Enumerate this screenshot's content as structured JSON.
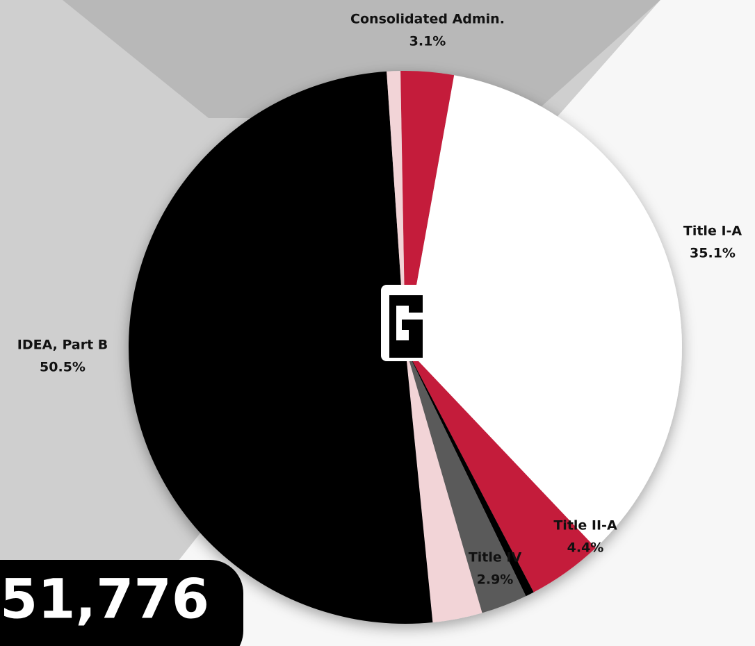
{
  "chart_data": {
    "type": "pie",
    "categories": [
      "Consolidated Admin.",
      "Title I-A",
      "Title II-A",
      null,
      null,
      "Title IV",
      "IDEA, Part B",
      null
    ],
    "values": [
      3.1,
      35.1,
      4.4,
      0.5,
      2.7,
      2.9,
      50.5,
      0.8
    ],
    "value_labels": [
      "3.1%",
      "35.1%",
      "4.4%",
      null,
      null,
      "2.9%",
      "50.5%",
      null
    ],
    "colors": [
      "#c41e3a",
      "#ffffff",
      "#c41e3a",
      "#000000",
      "#5a5a5a",
      "#f2d4d7",
      "#000000",
      "#f2d4d7"
    ],
    "total_label": "51,776"
  }
}
